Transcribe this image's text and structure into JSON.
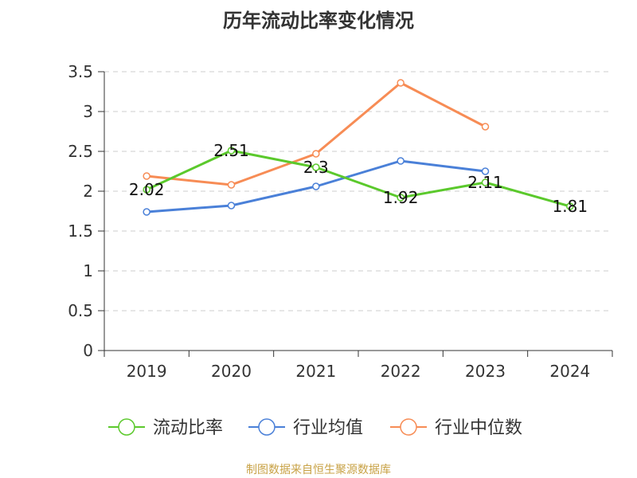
{
  "chart_data": {
    "type": "line",
    "title": "历年流动比率变化情况",
    "categories": [
      "2019",
      "2020",
      "2021",
      "2022",
      "2023",
      "2024"
    ],
    "ylim": [
      0,
      3.5
    ],
    "yticks": [
      "0",
      "0.5",
      "1",
      "1.5",
      "2",
      "2.5",
      "3",
      "3.5"
    ],
    "grid": true,
    "legend_position": "bottom",
    "series": [
      {
        "name": "流动比率",
        "color": "#5bc92c",
        "values": [
          2.02,
          2.51,
          2.3,
          1.92,
          2.11,
          1.81
        ],
        "labels": [
          "2.02",
          "2.51",
          "2.3",
          "1.92",
          "2.11",
          "1.81"
        ]
      },
      {
        "name": "行业均值",
        "color": "#4a80d8",
        "values": [
          1.74,
          1.82,
          2.06,
          2.38,
          2.25,
          null
        ]
      },
      {
        "name": "行业中位数",
        "color": "#f78c55",
        "values": [
          2.19,
          2.08,
          2.47,
          3.36,
          2.81,
          null
        ]
      }
    ]
  },
  "source": "制图数据来自恒生聚源数据库"
}
